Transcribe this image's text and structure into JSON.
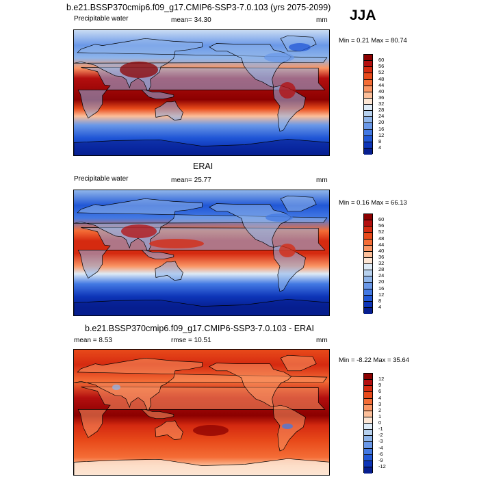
{
  "season": "JJA",
  "panels": [
    {
      "title": "b.e21.BSSP370cmip6.f09_g17.CMIP6-SSP3-7.0.103 (yrs 2075-2099)",
      "left_label": "Precipitable water",
      "stat_label": "mean=  34.30",
      "units": "mm",
      "minmax": "Min =   0.21 Max =  80.74",
      "kind": "model"
    },
    {
      "title": "ERAI",
      "left_label": "Precipitable water",
      "stat_label": "mean=  25.77",
      "units": "mm",
      "minmax": "Min =   0.16 Max =  66.13",
      "kind": "obs"
    },
    {
      "title": "b.e21.BSSP370cmip6.f09_g17.CMIP6-SSP3-7.0.103 - ERAI",
      "left_label": "mean =   8.53",
      "stat_label": "rmse =  10.51",
      "units": "mm",
      "minmax": "Min =  -8.22 Max =  35.64",
      "kind": "diff"
    }
  ],
  "colorbar_abs": {
    "labels": [
      "60",
      "56",
      "52",
      "48",
      "44",
      "40",
      "36",
      "32",
      "28",
      "24",
      "20",
      "16",
      "12",
      "8",
      "4"
    ],
    "colors": [
      "#8b0000",
      "#b30f0f",
      "#d52a10",
      "#e84a1a",
      "#f46d36",
      "#fa9564",
      "#fcbf9a",
      "#fde6d4",
      "#ddeaf6",
      "#b7d1ee",
      "#8fb5ea",
      "#6a98e8",
      "#4379e3",
      "#2157d6",
      "#0d35b8",
      "#061e8f"
    ]
  },
  "colorbar_diff": {
    "labels": [
      "12",
      "9",
      "6",
      "4",
      "3",
      "2",
      "1",
      "0",
      "-1",
      "-2",
      "-3",
      "-4",
      "-6",
      "-9",
      "-12"
    ],
    "colors": [
      "#8b0000",
      "#b30f0f",
      "#d52a10",
      "#e84a1a",
      "#f46d36",
      "#fa9564",
      "#fcbf9a",
      "#fde6d4",
      "#ddeaf6",
      "#b7d1ee",
      "#8fb5ea",
      "#6a98e8",
      "#4379e3",
      "#2157d6",
      "#0d35b8",
      "#061e8f"
    ]
  }
}
